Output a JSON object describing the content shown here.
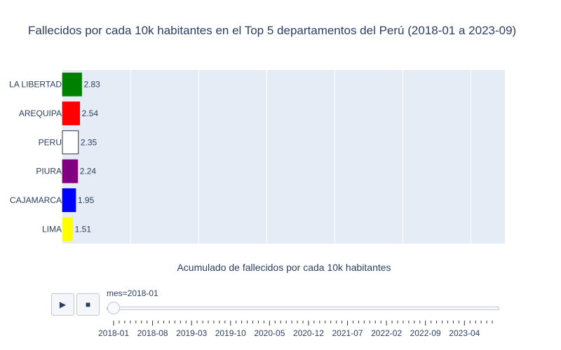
{
  "chart_data": {
    "type": "bar",
    "orientation": "horizontal",
    "title": "Fallecidos por cada 10k habitantes en el Top 5 departamentos del Perú (2018-01 a 2023-09)",
    "xlabel": "Acumulado de fallecidos por cada 10k habitantes",
    "categories": [
      "LA LIBERTAD",
      "AREQUIPA",
      "PERU",
      "PIURA",
      "CAJAMARCA",
      "LIMA"
    ],
    "values": [
      2.83,
      2.54,
      2.35,
      2.24,
      1.95,
      1.51
    ],
    "value_labels": [
      "2.83",
      "2.54",
      "2.35",
      "2.24",
      "1.95",
      "1.51"
    ],
    "colors": [
      "#008000",
      "#ff0000",
      "#ffffff",
      "#800080",
      "#0000ff",
      "#ffff00"
    ],
    "outline_colors": [
      "#008000",
      "#ff0000",
      "#000000",
      "#800080",
      "#0000ff",
      "#ffff00"
    ],
    "xlim": [
      0,
      65
    ],
    "x_gridlines": [
      10,
      20,
      30,
      40,
      50,
      60
    ],
    "grid": true,
    "plot_background": "#e5ecf6"
  },
  "animation": {
    "play_icon": "▶",
    "stop_icon": "■",
    "slider_prefix": "mes=",
    "current_frame": "2018-01",
    "frame_labels": [
      "2018-01",
      "2018-08",
      "2019-03",
      "2019-10",
      "2020-05",
      "2020-12",
      "2021-07",
      "2022-02",
      "2022-09",
      "2023-04"
    ],
    "total_frames": 69,
    "current_index": 0
  }
}
